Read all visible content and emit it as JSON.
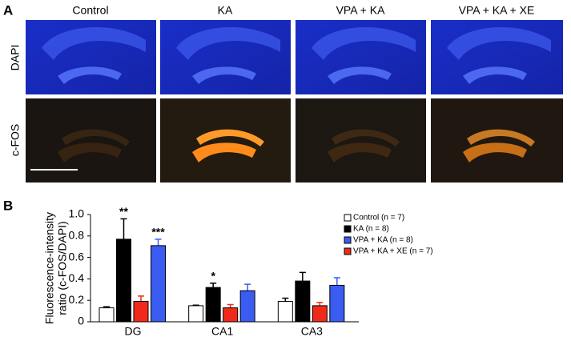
{
  "panel_a": {
    "label": "A",
    "columns": [
      "Control",
      "KA",
      "VPA + KA",
      "VPA + KA + XE"
    ],
    "rows": [
      "DAPI",
      "c-FOS"
    ]
  },
  "chart_data": {
    "type": "bar",
    "panel_label": "B",
    "ylabel": [
      "Fluorescence-intensity",
      "ratio (c-FOS/DAPI)"
    ],
    "categories": [
      "DG",
      "CA1",
      "CA3"
    ],
    "ylim": [
      0,
      1
    ],
    "yticks": [
      0,
      0.2,
      0.4,
      0.6,
      0.8,
      {
        "value": 1,
        "label": "1.0"
      }
    ],
    "series": [
      {
        "name": "Control (n = 7)",
        "color": "#ffffff",
        "values": [
          0.13,
          0.15,
          0.19
        ],
        "errors": [
          0.01,
          0.005,
          0.03
        ],
        "annotations": [
          null,
          null,
          null
        ]
      },
      {
        "name": "KA (n = 8)",
        "color": "#000000",
        "values": [
          0.77,
          0.32,
          0.38
        ],
        "errors": [
          0.19,
          0.04,
          0.08
        ],
        "annotations": [
          "**",
          "*",
          null
        ]
      },
      {
        "name": "VPA + KA (n = 8)",
        "color": "#3a5cf0",
        "values": [
          0.71,
          0.29,
          0.34
        ],
        "errors": [
          0.06,
          0.06,
          0.07
        ],
        "annotations": [
          "***",
          null,
          null
        ]
      },
      {
        "name": "VPA + KA + XE (n = 7)",
        "color": "#f02a1a",
        "values": [
          0.19,
          0.13,
          0.15
        ],
        "errors": [
          0.05,
          0.03,
          0.03
        ],
        "annotations": [
          null,
          null,
          null
        ]
      }
    ]
  }
}
